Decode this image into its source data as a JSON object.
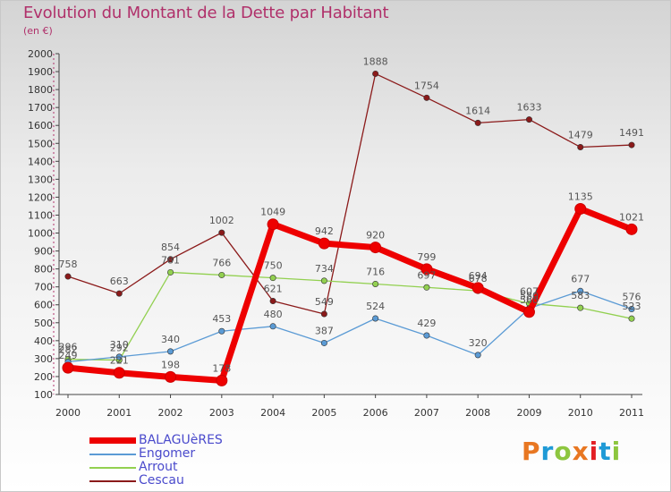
{
  "chart_data": {
    "type": "line",
    "title": "Evolution du Montant de la Dette par Habitant",
    "subtitle": "(en €)",
    "x": [
      "2000",
      "2001",
      "2002",
      "2003",
      "2004",
      "2005",
      "2006",
      "2007",
      "2008",
      "2009",
      "2010",
      "2011"
    ],
    "ylim": [
      100,
      2000
    ],
    "yticks": [
      100,
      200,
      300,
      400,
      500,
      600,
      700,
      800,
      900,
      1000,
      1100,
      1200,
      1300,
      1400,
      1500,
      1600,
      1700,
      1800,
      1900,
      2000
    ],
    "grid": false,
    "legend_position": "bottom-left",
    "series": [
      {
        "name": "BALAGUèRES",
        "color": "#ee0000",
        "values": [
          249,
          221,
          198,
          178,
          1049,
          942,
          920,
          799,
          694,
          560,
          1135,
          1021
        ]
      },
      {
        "name": "Engomer",
        "color": "#5b9bd5",
        "values": [
          282,
          310,
          340,
          453,
          480,
          387,
          524,
          429,
          320,
          580,
          677,
          576
        ]
      },
      {
        "name": "Arrout",
        "color": "#92d050",
        "values": [
          296,
          292,
          781,
          766,
          750,
          734,
          716,
          697,
          678,
          607,
          583,
          523
        ]
      },
      {
        "name": "Cescau",
        "color": "#8b1a1a",
        "values": [
          758,
          663,
          854,
          1002,
          621,
          549,
          1888,
          1754,
          1614,
          1633,
          1479,
          1491
        ]
      }
    ],
    "data_labels": [
      [
        "249",
        "221",
        "198",
        "178",
        "1049",
        "942",
        "920",
        "799",
        "694",
        "560",
        "1135",
        "1021"
      ],
      [
        "282",
        "310",
        "340",
        "453",
        "480",
        "387",
        "524",
        "429",
        "320",
        "580",
        "677",
        "576"
      ],
      [
        "296",
        "292",
        "781",
        "766",
        "750",
        "734",
        "716",
        "697",
        "678",
        "607",
        "583",
        "523"
      ],
      [
        "758",
        "663",
        "854",
        "1002",
        "621",
        "549",
        "1888",
        "1754",
        "1614",
        "1633",
        "1479",
        "1491"
      ]
    ]
  },
  "logo": {
    "text": "Proxiti",
    "colors": [
      "#e87722",
      "#1f9ad6",
      "#8dc63f",
      "#e87722",
      "#e31e24",
      "#1f9ad6",
      "#8dc63f"
    ]
  }
}
